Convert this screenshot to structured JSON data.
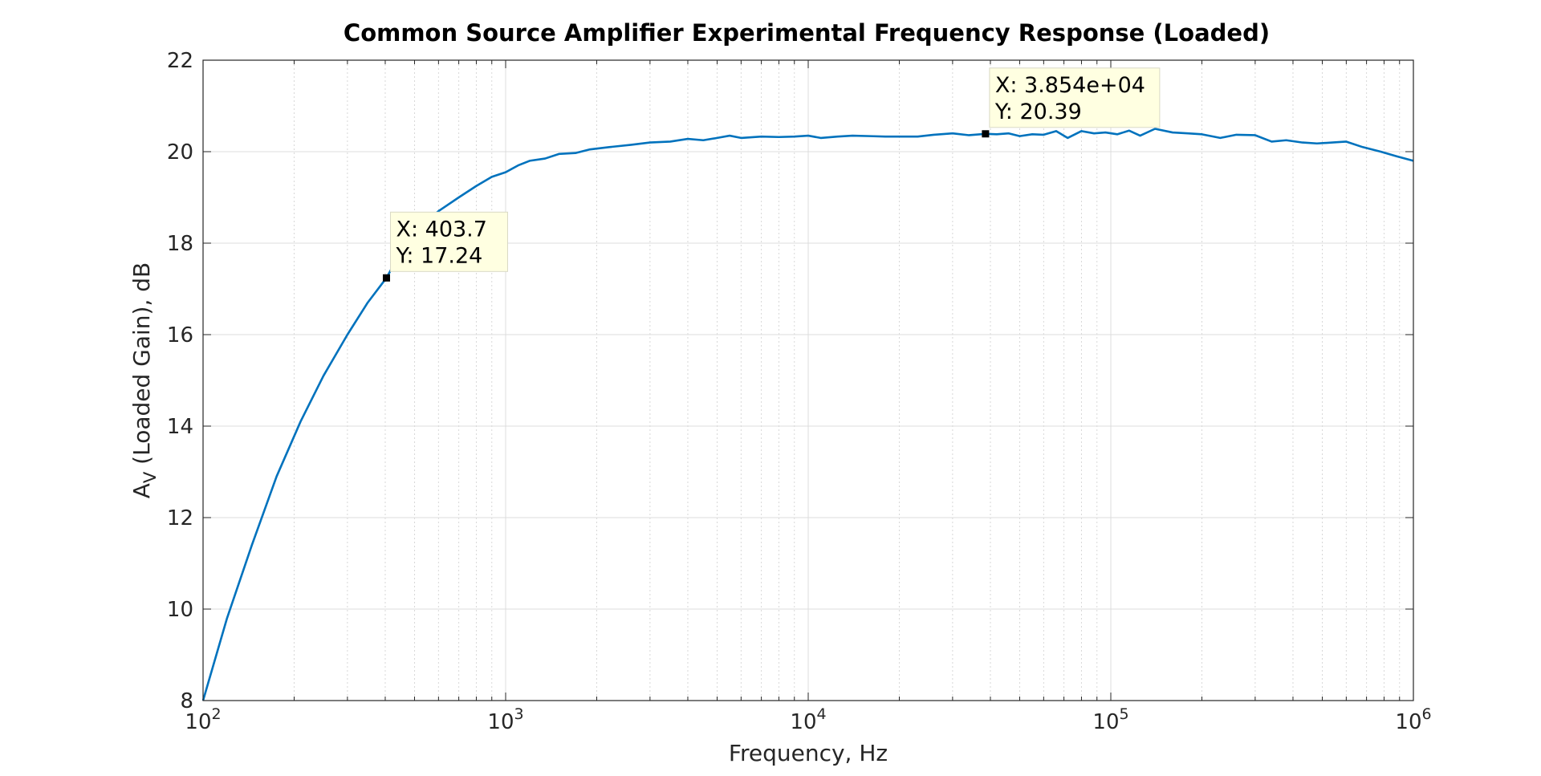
{
  "chart_data": {
    "type": "line",
    "title": "Common Source Amplifier Experimental Frequency Response (Loaded)",
    "xlabel": "Frequency, Hz",
    "ylabel_main": "A",
    "ylabel_sub": "V",
    "ylabel_rest": " (Loaded Gain), dB",
    "x_scale": "log",
    "xlim": [
      100,
      1000000
    ],
    "ylim": [
      8,
      22
    ],
    "grid": true,
    "minor_grid": true,
    "x_ticks": [
      {
        "base": "10",
        "exp": "2",
        "value": 100
      },
      {
        "base": "10",
        "exp": "3",
        "value": 1000
      },
      {
        "base": "10",
        "exp": "4",
        "value": 10000
      },
      {
        "base": "10",
        "exp": "5",
        "value": 100000
      },
      {
        "base": "10",
        "exp": "6",
        "value": 1000000
      }
    ],
    "y_ticks": [
      {
        "label": "8",
        "value": 8
      },
      {
        "label": "10",
        "value": 10
      },
      {
        "label": "12",
        "value": 12
      },
      {
        "label": "14",
        "value": 14
      },
      {
        "label": "16",
        "value": 16
      },
      {
        "label": "18",
        "value": 18
      },
      {
        "label": "20",
        "value": 20
      },
      {
        "label": "22",
        "value": 22
      }
    ],
    "line_color": "#0072bd",
    "series": [
      {
        "x": [
          100,
          120,
          145,
          175,
          210,
          250,
          300,
          350,
          403.7,
          450,
          520,
          600,
          700,
          800,
          900,
          1000,
          1100,
          1200,
          1350,
          1500,
          1700,
          1900,
          2200,
          2600,
          3000,
          3500,
          4000,
          4500,
          5000,
          5500,
          6000,
          7000,
          8000,
          9000,
          10000,
          11000,
          12500,
          14000,
          16000,
          18000,
          20000,
          23000,
          26000,
          30000,
          34000,
          38540,
          42000,
          46000,
          50000,
          55000,
          60000,
          66000,
          72000,
          80000,
          88000,
          96000,
          105000,
          115000,
          125000,
          140000,
          160000,
          180000,
          200000,
          230000,
          260000,
          300000,
          340000,
          380000,
          430000,
          480000,
          540000,
          600000,
          680000,
          780000,
          880000,
          1000000
        ],
        "y": [
          8.0,
          9.8,
          11.4,
          12.9,
          14.1,
          15.1,
          16.0,
          16.7,
          17.24,
          17.8,
          18.35,
          18.7,
          19.0,
          19.25,
          19.45,
          19.55,
          19.7,
          19.8,
          19.85,
          19.95,
          19.97,
          20.05,
          20.1,
          20.15,
          20.2,
          20.22,
          20.28,
          20.25,
          20.3,
          20.35,
          20.3,
          20.33,
          20.32,
          20.33,
          20.35,
          20.3,
          20.33,
          20.35,
          20.34,
          20.33,
          20.33,
          20.33,
          20.37,
          20.4,
          20.36,
          20.39,
          20.38,
          20.4,
          20.34,
          20.38,
          20.37,
          20.45,
          20.3,
          20.45,
          20.4,
          20.42,
          20.38,
          20.46,
          20.35,
          20.5,
          20.42,
          20.4,
          20.38,
          20.3,
          20.37,
          20.36,
          20.22,
          20.25,
          20.2,
          20.18,
          20.2,
          20.22,
          20.1,
          20.0,
          19.9,
          19.8
        ]
      }
    ],
    "datatips": [
      {
        "x": 403.7,
        "y": 17.24,
        "x_text": "X: 403.7",
        "y_text": "Y: 17.24"
      },
      {
        "x": 38540,
        "y": 20.39,
        "x_text": "X: 3.854e+04",
        "y_text": "Y: 20.39"
      }
    ]
  }
}
